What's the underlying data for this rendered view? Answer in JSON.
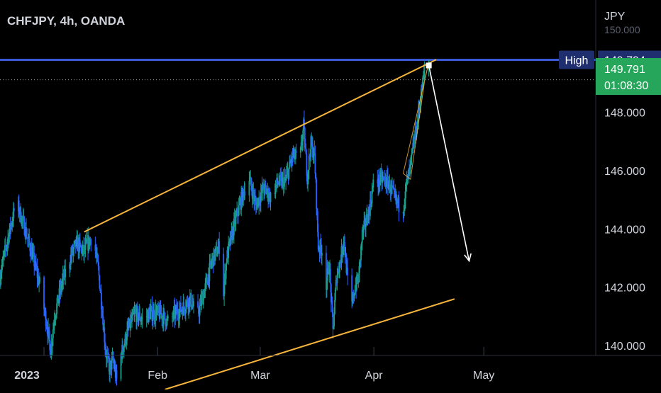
{
  "header": {
    "title": "CHFJPY, 4h, OANDA"
  },
  "price_scale": {
    "currency": "JPY",
    "hidden_top_label": "150.000"
  },
  "high_marker": {
    "label": "High",
    "price_text": "149.794"
  },
  "last_price": {
    "price_text": "149.791",
    "countdown": "01:08:30"
  },
  "colors": {
    "background": "#000000",
    "candle_up": "#1aa08c",
    "candle_down": "#2962ff",
    "channel": "#f6b53a",
    "high_line": "#3a59d6",
    "last_badge": "#26a65b",
    "arrow": "#ffffff"
  },
  "chart_data": {
    "type": "candlestick",
    "symbol": "CHFJPY",
    "interval": "4h",
    "source": "OANDA",
    "currency": "JPY",
    "ylim": [
      138.5,
      150.8
    ],
    "x_range": [
      "2022-12-20",
      "2023-05-18"
    ],
    "x_ticks": [
      {
        "date": "2023-01-01",
        "label": "2023"
      },
      {
        "date": "2023-02-01",
        "label": "Feb"
      },
      {
        "date": "2023-03-01",
        "label": "Mar"
      },
      {
        "date": "2023-04-01",
        "label": "Apr"
      },
      {
        "date": "2023-05-01",
        "label": "May"
      }
    ],
    "y_ticks": [
      140.0,
      142.0,
      144.0,
      146.0,
      148.0
    ],
    "y_tick_labels": [
      "140.000",
      "142.000",
      "144.000",
      "146.000",
      "148.000"
    ],
    "high": 149.794,
    "last": 149.791,
    "price_path": [
      [
        "2022-12-20",
        142.3
      ],
      [
        "2022-12-22",
        143.5
      ],
      [
        "2022-12-24",
        144.6
      ],
      [
        "2022-12-25",
        144.8
      ],
      [
        "2022-12-27",
        144.0
      ],
      [
        "2022-12-29",
        143.1
      ],
      [
        "2022-12-31",
        142.1
      ],
      [
        "2023-01-01",
        141.4
      ],
      [
        "2023-01-02",
        140.7
      ],
      [
        "2023-01-03",
        139.8
      ],
      [
        "2023-01-04",
        141.0
      ],
      [
        "2023-01-06",
        142.1
      ],
      [
        "2023-01-08",
        142.9
      ],
      [
        "2023-01-10",
        143.5
      ],
      [
        "2023-01-12",
        143.2
      ],
      [
        "2023-01-14",
        143.7
      ],
      [
        "2023-01-15",
        143.4
      ],
      [
        "2023-01-16",
        142.6
      ],
      [
        "2023-01-17",
        141.3
      ],
      [
        "2023-01-18",
        139.8
      ],
      [
        "2023-01-19",
        139.2
      ],
      [
        "2023-01-20",
        139.5
      ],
      [
        "2023-01-21",
        138.8
      ],
      [
        "2023-01-22",
        139.6
      ],
      [
        "2023-01-24",
        140.5
      ],
      [
        "2023-01-26",
        141.1
      ],
      [
        "2023-01-28",
        140.9
      ],
      [
        "2023-01-30",
        141.1
      ],
      [
        "2023-02-02",
        141.1
      ],
      [
        "2023-02-04",
        140.8
      ],
      [
        "2023-02-06",
        141.1
      ],
      [
        "2023-02-08",
        141.3
      ],
      [
        "2023-02-10",
        141.6
      ],
      [
        "2023-02-12",
        141.0
      ],
      [
        "2023-02-14",
        141.9
      ],
      [
        "2023-02-16",
        142.9
      ],
      [
        "2023-02-18",
        143.4
      ],
      [
        "2023-02-19",
        141.6
      ],
      [
        "2023-02-20",
        143.0
      ],
      [
        "2023-02-22",
        144.1
      ],
      [
        "2023-02-24",
        145.0
      ],
      [
        "2023-02-26",
        145.8
      ],
      [
        "2023-02-28",
        144.8
      ],
      [
        "2023-03-02",
        145.4
      ],
      [
        "2023-03-04",
        145.1
      ],
      [
        "2023-03-06",
        145.6
      ],
      [
        "2023-03-08",
        145.6
      ],
      [
        "2023-03-10",
        146.5
      ],
      [
        "2023-03-12",
        146.4
      ],
      [
        "2023-03-13",
        147.5
      ],
      [
        "2023-03-14",
        145.8
      ],
      [
        "2023-03-15",
        146.9
      ],
      [
        "2023-03-16",
        146.5
      ],
      [
        "2023-03-17",
        143.4
      ],
      [
        "2023-03-18",
        143.3
      ],
      [
        "2023-03-19",
        142.0
      ],
      [
        "2023-03-20",
        142.8
      ],
      [
        "2023-03-21",
        140.5
      ],
      [
        "2023-03-22",
        142.4
      ],
      [
        "2023-03-23",
        142.9
      ],
      [
        "2023-03-24",
        143.7
      ],
      [
        "2023-03-25",
        142.2
      ],
      [
        "2023-03-26",
        141.2
      ],
      [
        "2023-03-27",
        142.0
      ],
      [
        "2023-03-28",
        142.3
      ],
      [
        "2023-03-29",
        143.8
      ],
      [
        "2023-03-31",
        144.7
      ],
      [
        "2023-04-01",
        145.5
      ],
      [
        "2023-04-03",
        145.7
      ],
      [
        "2023-04-05",
        145.6
      ],
      [
        "2023-04-07",
        145.0
      ],
      [
        "2023-04-09",
        144.6
      ],
      [
        "2023-04-10",
        145.5
      ],
      [
        "2023-04-11",
        146.0
      ],
      [
        "2023-04-12",
        146.9
      ],
      [
        "2023-04-13",
        147.6
      ],
      [
        "2023-04-14",
        148.6
      ],
      [
        "2023-04-15",
        149.4
      ],
      [
        "2023-04-16",
        149.79
      ]
    ],
    "annotations": {
      "channel_upper": [
        [
          "2023-01-12",
          143.9
        ],
        [
          "2023-04-18",
          149.8
        ]
      ],
      "channel_lower": [
        [
          "2023-02-03",
          138.5
        ],
        [
          "2023-04-23",
          141.6
        ]
      ],
      "high_line": 149.794,
      "arrow": [
        [
          "2023-04-16",
          149.6
        ],
        [
          "2023-04-27",
          142.9
        ]
      ],
      "wedge": [
        [
          "2023-04-09",
          145.9
        ],
        [
          "2023-04-16",
          149.7
        ],
        [
          "2023-04-15",
          149.2
        ],
        [
          "2023-04-11",
          145.7
        ]
      ]
    }
  }
}
